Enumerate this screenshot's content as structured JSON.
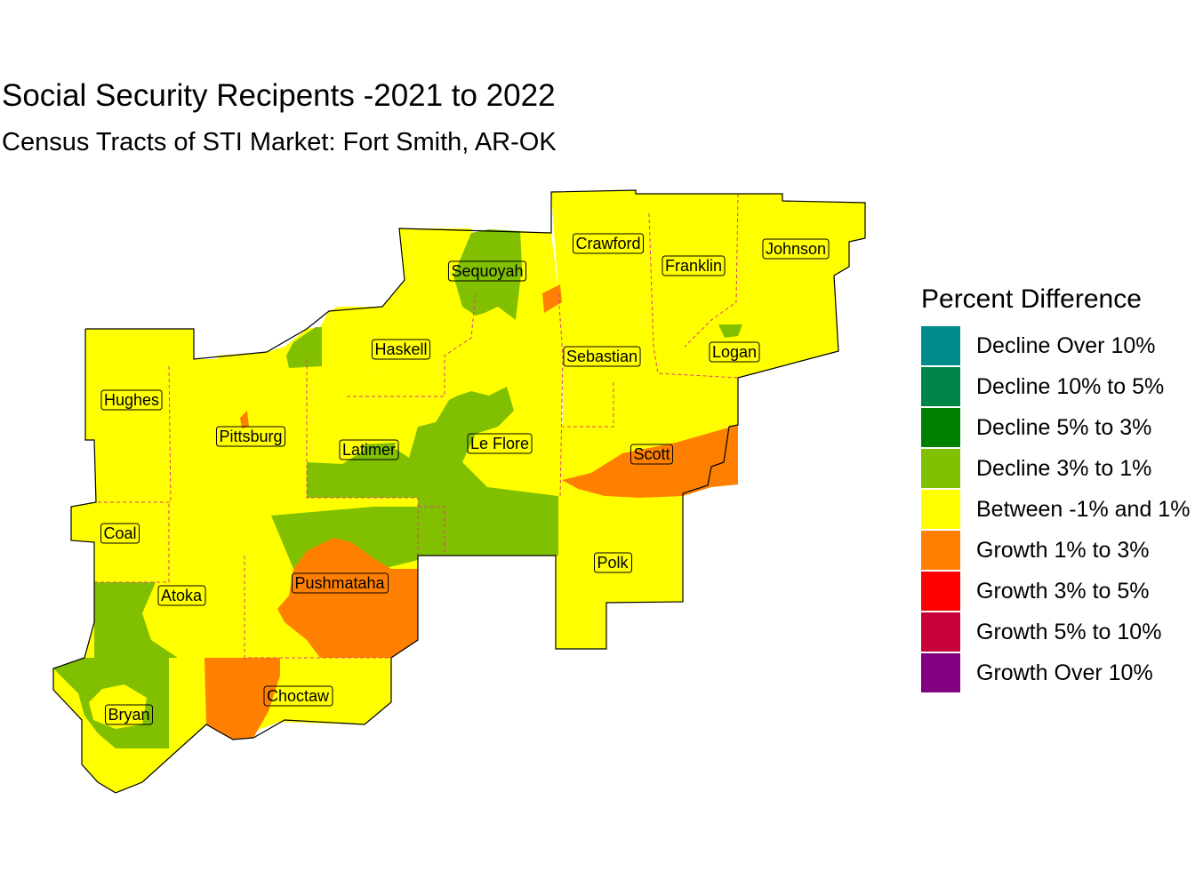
{
  "title": "Social Security Recipents -2021 to 2022",
  "subtitle": "Census Tracts of STI Market: Fort Smith, AR-OK",
  "legend": {
    "title": "Percent Difference",
    "items": [
      {
        "label": "Decline Over 10%",
        "color": "#008B8B"
      },
      {
        "label": "Decline 10% to 5%",
        "color": "#008548"
      },
      {
        "label": "Decline 5% to 3%",
        "color": "#008000"
      },
      {
        "label": "Decline 3% to 1%",
        "color": "#80C000"
      },
      {
        "label": "Between -1% and 1%",
        "color": "#FFFF00"
      },
      {
        "label": "Growth 1% to 3%",
        "color": "#FF8000"
      },
      {
        "label": "Growth 3% to 5%",
        "color": "#FF0000"
      },
      {
        "label": "Growth 5% to 10%",
        "color": "#C8003C"
      },
      {
        "label": "Growth Over 10%",
        "color": "#800080"
      }
    ]
  },
  "counties": [
    {
      "name": "Crawford"
    },
    {
      "name": "Sequoyah"
    },
    {
      "name": "Franklin"
    },
    {
      "name": "Johnson"
    },
    {
      "name": "Haskell"
    },
    {
      "name": "Sebastian"
    },
    {
      "name": "Logan"
    },
    {
      "name": "Hughes"
    },
    {
      "name": "Pittsburg"
    },
    {
      "name": "Latimer"
    },
    {
      "name": "Le Flore"
    },
    {
      "name": "Scott"
    },
    {
      "name": "Coal"
    },
    {
      "name": "Polk"
    },
    {
      "name": "Pushmataha"
    },
    {
      "name": "Atoka"
    },
    {
      "name": "Choctaw"
    },
    {
      "name": "Bryan"
    }
  ]
}
